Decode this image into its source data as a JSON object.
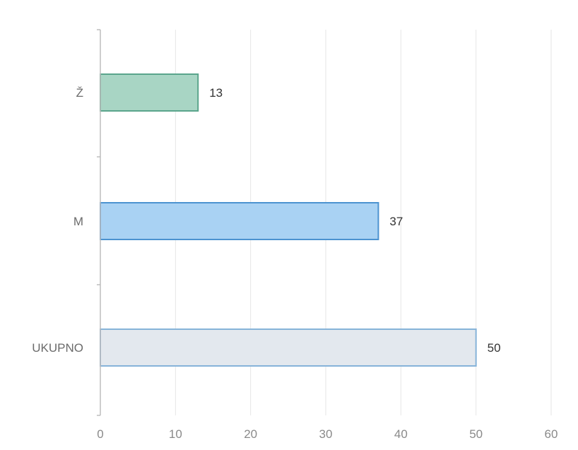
{
  "chart_data": {
    "type": "bar",
    "orientation": "horizontal",
    "categories": [
      "Ž",
      "M",
      "UKUPNO"
    ],
    "values": [
      13,
      37,
      50
    ],
    "bar_colors": [
      "#a8d5c4",
      "#a9d2f3",
      "#e3e8ee"
    ],
    "bar_border_colors": [
      "#5aa58c",
      "#4c93d0",
      "#86b3d9"
    ],
    "xlim": [
      0,
      60
    ],
    "xticks": [
      0,
      10,
      20,
      30,
      40,
      50,
      60
    ],
    "grid": true,
    "title": "",
    "xlabel": "",
    "ylabel": ""
  }
}
